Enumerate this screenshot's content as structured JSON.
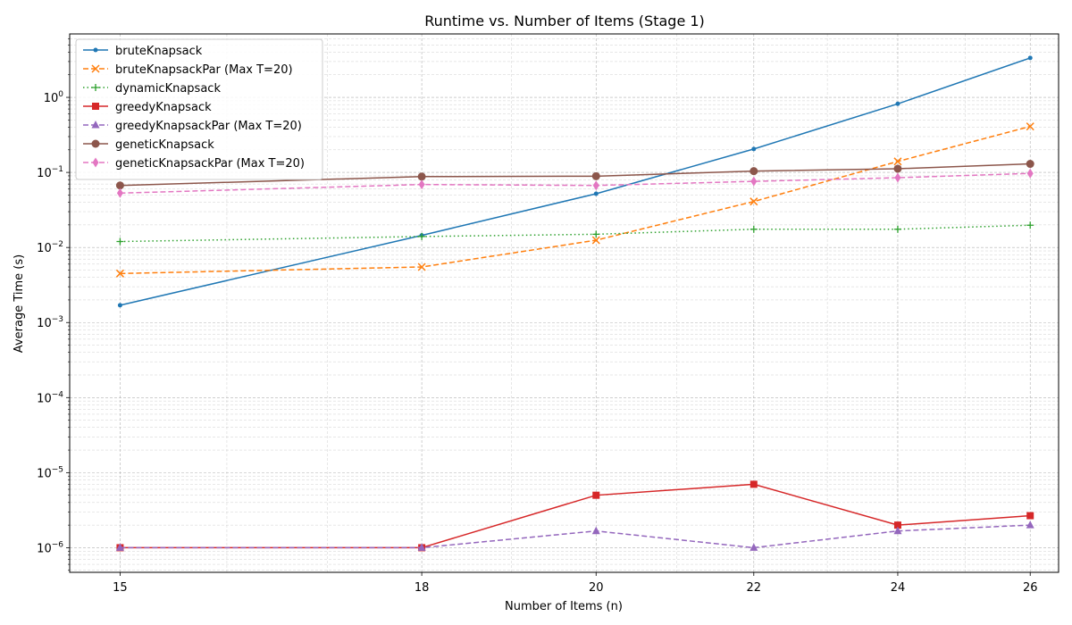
{
  "chart_data": {
    "type": "line",
    "title": "Runtime vs. Number of Items (Stage 1)",
    "xlabel": "Number of Items (n)",
    "ylabel": "Average Time (s)",
    "yscale": "log",
    "x": [
      15,
      18,
      20,
      22,
      24,
      26
    ],
    "xlim": [
      14.55,
      26.45
    ],
    "ylim": [
      4.7e-07,
      7.0
    ],
    "x_ticks": [
      "15",
      "18",
      "20",
      "22",
      "24",
      "26"
    ],
    "y_ticks": [
      {
        "value": 1e-06,
        "base": "10",
        "exp": "−6"
      },
      {
        "value": 1e-05,
        "base": "10",
        "exp": "−5"
      },
      {
        "value": 0.0001,
        "base": "10",
        "exp": "−4"
      },
      {
        "value": 0.001,
        "base": "10",
        "exp": "−3"
      },
      {
        "value": 0.01,
        "base": "10",
        "exp": "−2"
      },
      {
        "value": 0.1,
        "base": "10",
        "exp": "−1"
      },
      {
        "value": 1,
        "base": "10",
        "exp": "0"
      }
    ],
    "grid": true,
    "legend_position": "top-left",
    "series": [
      {
        "name": "bruteKnapsack",
        "color": "#1f77b4",
        "dash": "solid",
        "marker": "dot",
        "values": [
          0.0017,
          0.0145,
          0.052,
          0.205,
          0.82,
          3.35
        ]
      },
      {
        "name": "bruteKnapsackPar (Max T=20)",
        "color": "#ff7f0e",
        "dash": "dashed",
        "marker": "x",
        "values": [
          0.0045,
          0.0055,
          0.0125,
          0.041,
          0.14,
          0.41
        ]
      },
      {
        "name": "dynamicKnapsack",
        "color": "#2ca02c",
        "dash": "dotted",
        "marker": "plus",
        "values": [
          0.012,
          0.014,
          0.015,
          0.0175,
          0.0175,
          0.0198
        ]
      },
      {
        "name": "greedyKnapsack",
        "color": "#d62728",
        "dash": "solid",
        "marker": "square",
        "values": [
          1e-06,
          1e-06,
          5e-06,
          7e-06,
          2e-06,
          2.67e-06
        ]
      },
      {
        "name": "greedyKnapsackPar (Max T=20)",
        "color": "#9467bd",
        "dash": "dashed",
        "marker": "triangle",
        "values": [
          1e-06,
          1e-06,
          1.67e-06,
          1e-06,
          1.67e-06,
          2e-06
        ]
      },
      {
        "name": "geneticKnapsack",
        "color": "#8c564b",
        "dash": "solid",
        "marker": "circle",
        "values": [
          0.067,
          0.088,
          0.089,
          0.104,
          0.112,
          0.13
        ]
      },
      {
        "name": "geneticKnapsackPar (Max T=20)",
        "color": "#e377c2",
        "dash": "dashed",
        "marker": "diamond",
        "values": [
          0.053,
          0.069,
          0.067,
          0.076,
          0.085,
          0.097
        ]
      }
    ]
  }
}
